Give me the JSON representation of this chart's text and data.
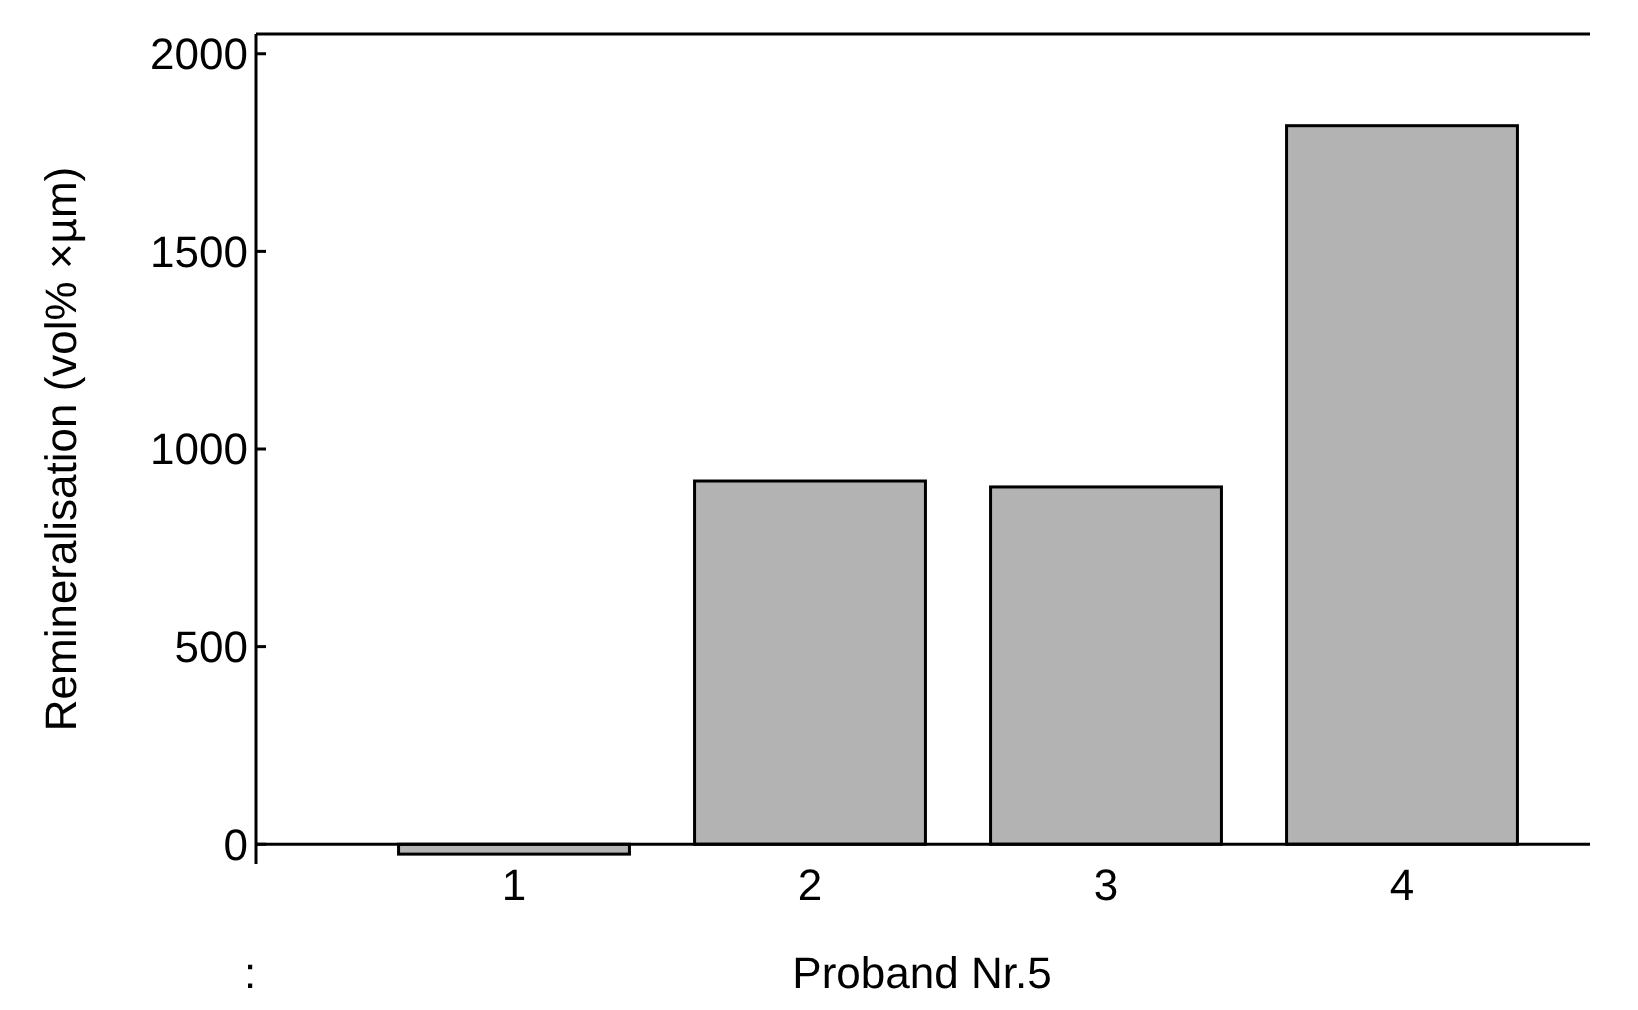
{
  "chart_data": {
    "type": "bar",
    "xlabel": "Proband Nr.5",
    "ylabel": "Remineralisation (vol% ×µm)",
    "categories": [
      "1",
      "2",
      "3",
      "4"
    ],
    "values": [
      -25,
      919,
      904,
      1818
    ],
    "color": "#b3b3b3",
    "ylim": [
      -50,
      2050
    ],
    "yticks": [
      0,
      500,
      1000,
      1500,
      2000
    ],
    "annotations": [
      ":"
    ]
  }
}
